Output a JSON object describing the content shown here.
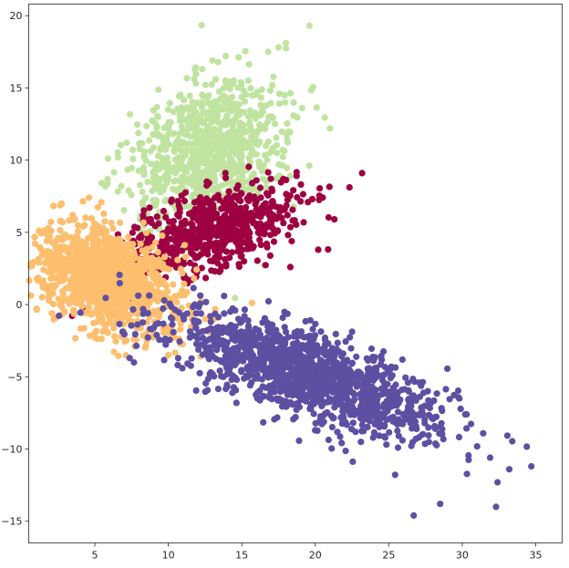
{
  "chart_data": {
    "type": "scatter",
    "title": "",
    "xlabel": "",
    "ylabel": "",
    "xlim": [
      0.5,
      36.8
    ],
    "ylim": [
      -16.5,
      20.8
    ],
    "xticks": [
      5,
      10,
      15,
      20,
      25,
      30,
      35
    ],
    "yticks": [
      -15,
      -10,
      -5,
      0,
      5,
      10,
      15,
      20
    ],
    "grid": false,
    "legend": "none",
    "clusters": [
      {
        "color": "#c0e4a0",
        "center": [
          12.8,
          10.5
        ],
        "spread": [
          2.8,
          2.2
        ],
        "rotation_deg": 35,
        "count": 900,
        "outliers": [
          [
            19.6,
            19.3
          ],
          [
            18.0,
            18.1
          ],
          [
            17.5,
            17.8
          ],
          [
            16.8,
            17.5
          ],
          [
            13.9,
            17.2
          ],
          [
            12.3,
            16.3
          ],
          [
            21.0,
            12.2
          ],
          [
            19.1,
            13.6
          ],
          [
            9.3,
            13.0
          ],
          [
            6.8,
            8.2
          ]
        ]
      },
      {
        "color": "#9e0142",
        "center": [
          13.0,
          5.2
        ],
        "spread": [
          3.4,
          1.3
        ],
        "rotation_deg": 18,
        "count": 650,
        "outliers": [
          [
            21.3,
            5.9
          ],
          [
            20.2,
            3.8
          ],
          [
            18.3,
            2.6
          ],
          [
            16.0,
            8.6
          ],
          [
            19.8,
            7.3
          ],
          [
            8.6,
            2.2
          ],
          [
            14.8,
            2.8
          ]
        ]
      },
      {
        "color": "#fdbe6e",
        "center": [
          5.8,
          1.8
        ],
        "spread": [
          2.6,
          1.6
        ],
        "rotation_deg": -30,
        "count": 1200,
        "outliers": [
          [
            2.0,
            1.8
          ],
          [
            12.2,
            -3.6
          ],
          [
            10.0,
            -3.5
          ],
          [
            4.6,
            7.4
          ],
          [
            3.5,
            6.2
          ],
          [
            13.1,
            -1.0
          ]
        ]
      },
      {
        "color": "#5e4fa2",
        "center": [
          19.5,
          -4.9
        ],
        "spread": [
          4.8,
          1.3
        ],
        "rotation_deg": -20,
        "count": 1400,
        "outliers": [
          [
            34.7,
            -11.2
          ],
          [
            33.2,
            -11.4
          ],
          [
            32.4,
            -12.3
          ],
          [
            32.3,
            -14.0
          ],
          [
            26.7,
            -14.6
          ],
          [
            28.5,
            -13.8
          ],
          [
            31.9,
            -10.6
          ],
          [
            29.8,
            -6.5
          ],
          [
            13.8,
            0.6
          ],
          [
            27.8,
            -6.8
          ],
          [
            30.3,
            -7.6
          ]
        ]
      }
    ]
  }
}
